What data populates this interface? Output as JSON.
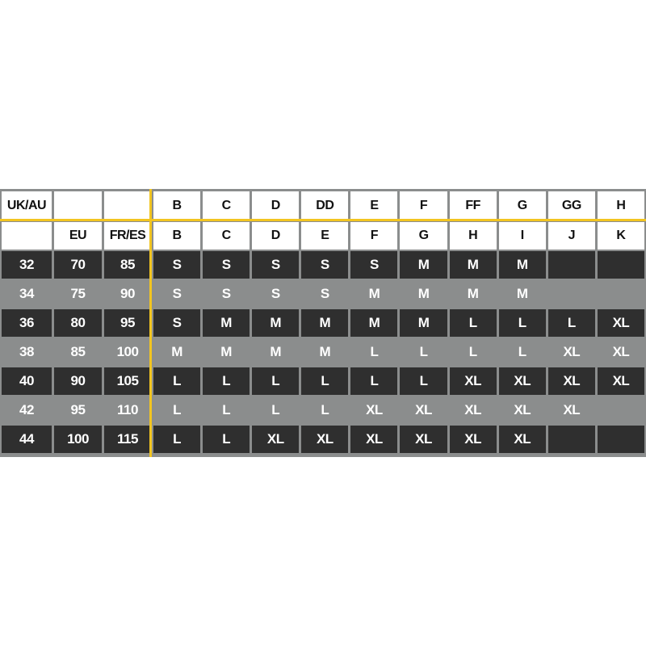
{
  "header_row_1": [
    "UK/AU",
    "",
    "",
    "B",
    "C",
    "D",
    "DD",
    "E",
    "F",
    "FF",
    "G",
    "GG",
    "H"
  ],
  "header_row_2": [
    "",
    "EU",
    "FR/ES",
    "B",
    "C",
    "D",
    "E",
    "F",
    "G",
    "H",
    "I",
    "J",
    "K"
  ],
  "rows": [
    {
      "style": "dark",
      "cells": [
        "32",
        "70",
        "85",
        "S",
        "S",
        "S",
        "S",
        "S",
        "M",
        "M",
        "M",
        "",
        ""
      ]
    },
    {
      "style": "light",
      "cells": [
        "34",
        "75",
        "90",
        "S",
        "S",
        "S",
        "S",
        "M",
        "M",
        "M",
        "M",
        "",
        ""
      ]
    },
    {
      "style": "dark",
      "cells": [
        "36",
        "80",
        "95",
        "S",
        "M",
        "M",
        "M",
        "M",
        "M",
        "L",
        "L",
        "L",
        "XL"
      ]
    },
    {
      "style": "light",
      "cells": [
        "38",
        "85",
        "100",
        "M",
        "M",
        "M",
        "M",
        "L",
        "L",
        "L",
        "L",
        "XL",
        "XL"
      ]
    },
    {
      "style": "dark",
      "cells": [
        "40",
        "90",
        "105",
        "L",
        "L",
        "L",
        "L",
        "L",
        "L",
        "XL",
        "XL",
        "XL",
        "XL"
      ]
    },
    {
      "style": "light",
      "cells": [
        "42",
        "95",
        "110",
        "L",
        "L",
        "L",
        "L",
        "XL",
        "XL",
        "XL",
        "XL",
        "XL",
        ""
      ]
    },
    {
      "style": "dark",
      "cells": [
        "44",
        "100",
        "115",
        "L",
        "L",
        "XL",
        "XL",
        "XL",
        "XL",
        "XL",
        "XL",
        "",
        ""
      ]
    }
  ],
  "colors": {
    "accent_line": "#f2c520",
    "dark_cell": "#2f2f2f",
    "grid_background": "#8b8d8d",
    "header_cell": "#ffffff"
  }
}
